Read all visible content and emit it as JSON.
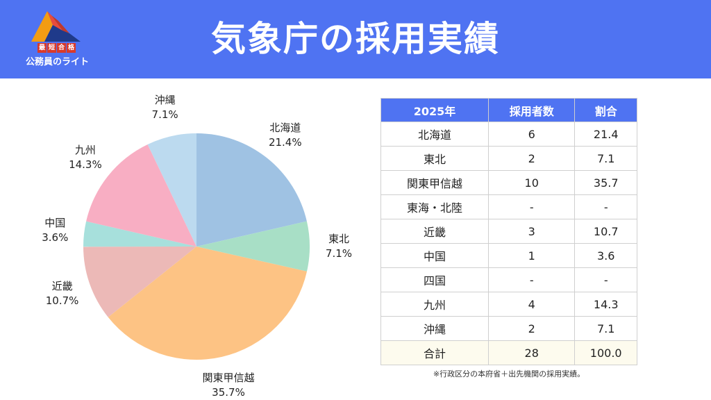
{
  "header": {
    "title": "気象庁の採用実績",
    "logo": {
      "tag": [
        "最",
        "短",
        "合",
        "格"
      ],
      "name": "公務員のライト"
    }
  },
  "colors": {
    "header_bg": "#4f73f2",
    "table_header_bg": "#4f73f2",
    "total_row_bg": "#fdfbee"
  },
  "chart_data": {
    "type": "pie",
    "categories": [
      "北海道",
      "東北",
      "関東甲信越",
      "近畿",
      "中国",
      "九州",
      "沖縄"
    ],
    "values": [
      21.4,
      7.1,
      35.7,
      10.7,
      3.6,
      14.3,
      7.1
    ],
    "labels": [
      "21.4%",
      "7.1%",
      "35.7%",
      "10.7%",
      "3.6%",
      "14.3%",
      "7.1%"
    ],
    "colors": [
      "#9fc2e3",
      "#a8dfc6",
      "#fdc384",
      "#ecb9b7",
      "#a7e0dc",
      "#f8aec3",
      "#bcdaef"
    ],
    "start_angle": "12 o'clock",
    "direction": "clockwise"
  },
  "table": {
    "headers": [
      "2025年",
      "採用者数",
      "割合"
    ],
    "rows": [
      [
        "北海道",
        "6",
        "21.4"
      ],
      [
        "東北",
        "2",
        "7.1"
      ],
      [
        "関東甲信越",
        "10",
        "35.7"
      ],
      [
        "東海・北陸",
        "-",
        "-"
      ],
      [
        "近畿",
        "3",
        "10.7"
      ],
      [
        "中国",
        "1",
        "3.6"
      ],
      [
        "四国",
        "-",
        "-"
      ],
      [
        "九州",
        "4",
        "14.3"
      ],
      [
        "沖縄",
        "2",
        "7.1"
      ]
    ],
    "total": [
      "合計",
      "28",
      "100.0"
    ]
  },
  "footnote": "※行政区分の本府省＋出先機関の採用実績。"
}
